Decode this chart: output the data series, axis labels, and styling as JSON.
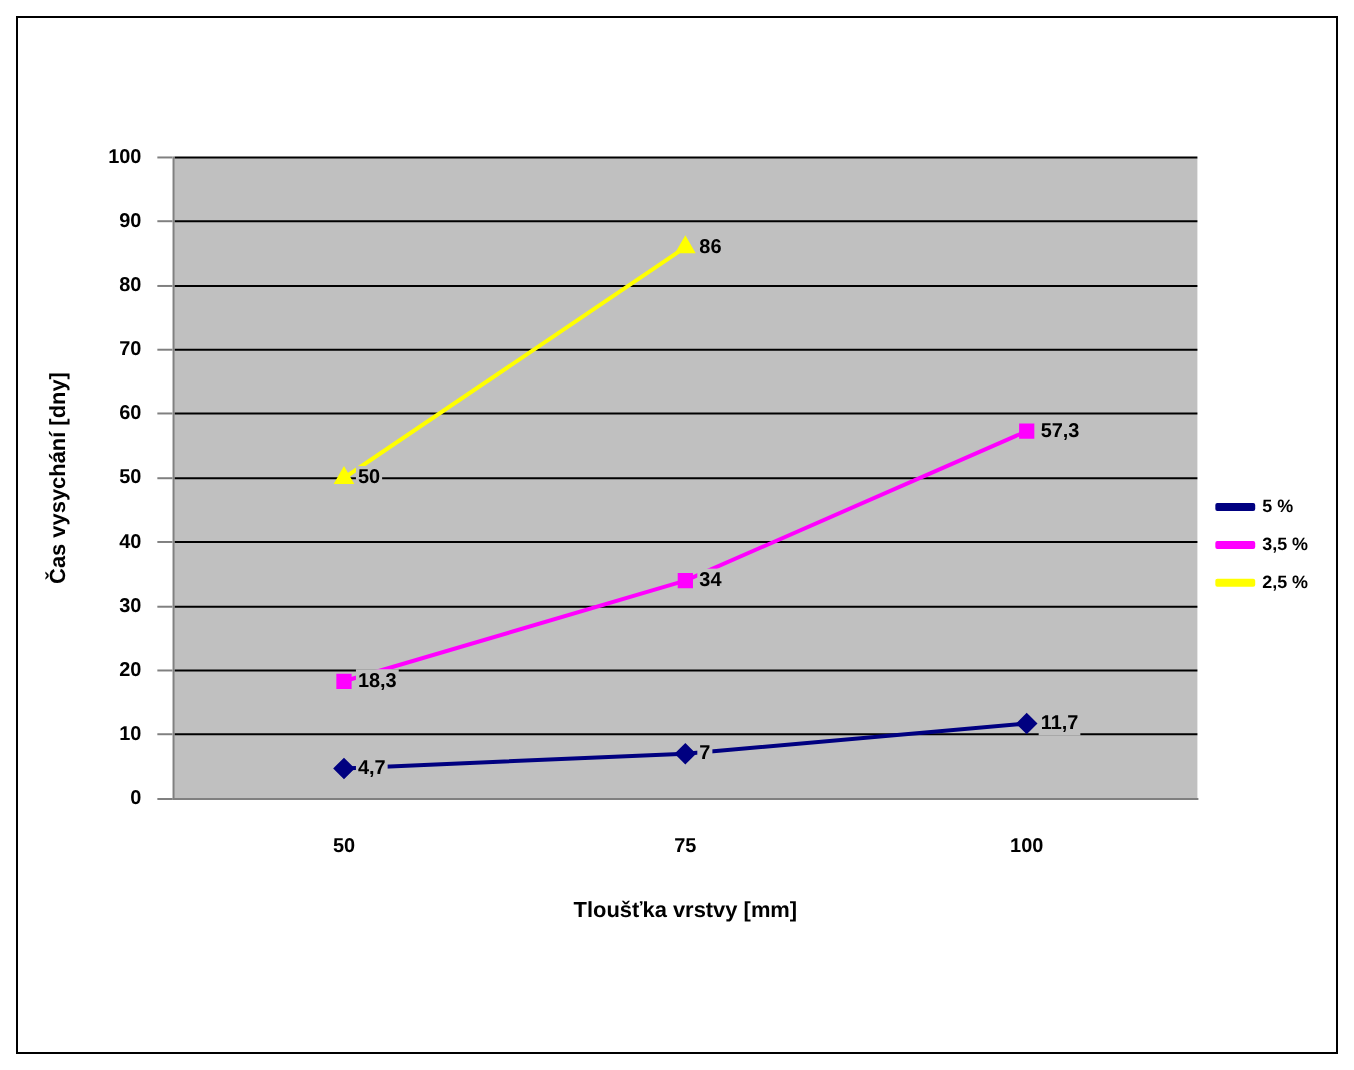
{
  "chart_data": {
    "type": "line",
    "xlabel": "Tloušťka vrstvy [mm]",
    "ylabel": "Čas vysychání [dny]",
    "categories": [
      "50",
      "75",
      "100"
    ],
    "series": [
      {
        "name": "5 %",
        "color": "#000080",
        "marker": "diamond",
        "values": [
          4.7,
          7,
          11.7
        ],
        "value_labels": [
          "4,7",
          "7",
          "11,7"
        ]
      },
      {
        "name": "3,5 %",
        "color": "#ff00ff",
        "marker": "square",
        "values": [
          18.3,
          34,
          57.3
        ],
        "value_labels": [
          "18,3",
          "34",
          "57,3"
        ]
      },
      {
        "name": "2,5 %",
        "color": "#ffff00",
        "marker": "triangle",
        "values": [
          50,
          86,
          null
        ],
        "value_labels": [
          "50",
          "86",
          null
        ]
      }
    ],
    "ylim": [
      0,
      100
    ],
    "yticks": [
      0,
      10,
      20,
      30,
      40,
      50,
      60,
      70,
      80,
      90,
      100
    ],
    "grid": "y",
    "legend": "right"
  }
}
